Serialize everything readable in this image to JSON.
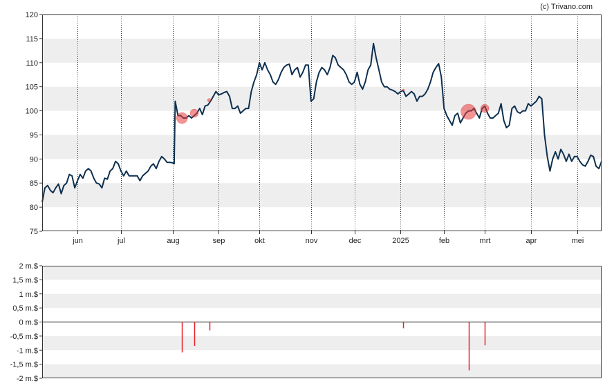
{
  "credit": "(c) Trivano.com",
  "chart_data": [
    {
      "type": "line",
      "y_ticks": [
        "120",
        "115",
        "110",
        "105",
        "100",
        "95",
        "90",
        "85",
        "80",
        "75"
      ],
      "ylim": [
        75,
        120
      ],
      "x_ticks": [
        {
          "label": "jun",
          "x": 13
        },
        {
          "label": "jul",
          "x": 29
        },
        {
          "label": "aug",
          "x": 48
        },
        {
          "label": "sep",
          "x": 65
        },
        {
          "label": "okt",
          "x": 80
        },
        {
          "label": "nov",
          "x": 99
        },
        {
          "label": "dec",
          "x": 115
        },
        {
          "label": "2025",
          "x": 132
        },
        {
          "label": "feb",
          "x": 148
        },
        {
          "label": "mrt",
          "x": 163
        },
        {
          "label": "apr",
          "x": 180
        },
        {
          "label": "mei",
          "x": 197
        }
      ],
      "xlim": [
        0,
        201
      ],
      "series": [
        {
          "values": [
            [
              0,
              81
            ],
            [
              1,
              84
            ],
            [
              2,
              84.5
            ],
            [
              3,
              83.5
            ],
            [
              4,
              83
            ],
            [
              5,
              84
            ],
            [
              6,
              84.8
            ],
            [
              7,
              82.8
            ],
            [
              8,
              84.5
            ],
            [
              9,
              85
            ],
            [
              10,
              86.8
            ],
            [
              11,
              86.5
            ],
            [
              12,
              84
            ],
            [
              13,
              85.5
            ],
            [
              14,
              86.8
            ],
            [
              15,
              86
            ],
            [
              16,
              87.5
            ],
            [
              17,
              88
            ],
            [
              18,
              87.5
            ],
            [
              19,
              86
            ],
            [
              20,
              85
            ],
            [
              21,
              84.8
            ],
            [
              22,
              84
            ],
            [
              23,
              86
            ],
            [
              24,
              85.8
            ],
            [
              25,
              87.5
            ],
            [
              26,
              88
            ],
            [
              27,
              89.5
            ],
            [
              28,
              89
            ],
            [
              29,
              87.5
            ],
            [
              30,
              86.5
            ],
            [
              31,
              87.5
            ],
            [
              32,
              86.5
            ],
            [
              33,
              86.5
            ],
            [
              34,
              86.5
            ],
            [
              35,
              86.5
            ],
            [
              36,
              85.5
            ],
            [
              37,
              86.5
            ],
            [
              38,
              87
            ],
            [
              39,
              87.5
            ],
            [
              40,
              88.5
            ],
            [
              41,
              89
            ],
            [
              42,
              88
            ],
            [
              43,
              89.5
            ],
            [
              44,
              90.5
            ],
            [
              45,
              90
            ],
            [
              46,
              89.3
            ],
            [
              47,
              89.3
            ],
            [
              48,
              89.2
            ],
            [
              48.6,
              89
            ],
            [
              49,
              102
            ],
            [
              50,
              99
            ],
            [
              51,
              99
            ],
            [
              52,
              98.5
            ],
            [
              53,
              98.5
            ],
            [
              54,
              99
            ],
            [
              55,
              98.5
            ],
            [
              56,
              99
            ],
            [
              57,
              99.5
            ],
            [
              58,
              100.5
            ],
            [
              59,
              99.2
            ],
            [
              60,
              101
            ],
            [
              61,
              101.2
            ],
            [
              62,
              102
            ],
            [
              63,
              103
            ],
            [
              64,
              104
            ],
            [
              65,
              103.3
            ],
            [
              66,
              103.5
            ],
            [
              67,
              103.8
            ],
            [
              68,
              104
            ],
            [
              69,
              103
            ],
            [
              70,
              100.5
            ],
            [
              71,
              100.5
            ],
            [
              72,
              101
            ],
            [
              73,
              99.5
            ],
            [
              74,
              100
            ],
            [
              75,
              100.5
            ],
            [
              76,
              100.5
            ],
            [
              77,
              104
            ],
            [
              78,
              106
            ],
            [
              79,
              107.5
            ],
            [
              80,
              110
            ],
            [
              81,
              108.5
            ],
            [
              82,
              110
            ],
            [
              83,
              108.5
            ],
            [
              84,
              107.5
            ],
            [
              85,
              106
            ],
            [
              86,
              105.5
            ],
            [
              87,
              106.5
            ],
            [
              88,
              108
            ],
            [
              89,
              109
            ],
            [
              90,
              109.5
            ],
            [
              91,
              109.7
            ],
            [
              92,
              107.5
            ],
            [
              93,
              108.5
            ],
            [
              94,
              109
            ],
            [
              95,
              107
            ],
            [
              96,
              108
            ],
            [
              97,
              109.5
            ],
            [
              98,
              109.5
            ],
            [
              99,
              102
            ],
            [
              100,
              102.5
            ],
            [
              101,
              106
            ],
            [
              102,
              108
            ],
            [
              103,
              109
            ],
            [
              104,
              108.5
            ],
            [
              105,
              107.5
            ],
            [
              106,
              109
            ],
            [
              107,
              111.5
            ],
            [
              108,
              111
            ],
            [
              109,
              109.5
            ],
            [
              110,
              109
            ],
            [
              111,
              108.5
            ],
            [
              112,
              107.5
            ],
            [
              113,
              106
            ],
            [
              114,
              105.5
            ],
            [
              115,
              106
            ],
            [
              116,
              108
            ],
            [
              117,
              105.5
            ],
            [
              118,
              104.5
            ],
            [
              119,
              106
            ],
            [
              120,
              108.5
            ],
            [
              121,
              109.5
            ],
            [
              122,
              114
            ],
            [
              123,
              111
            ],
            [
              124,
              108.5
            ],
            [
              125,
              106
            ],
            [
              126,
              105
            ],
            [
              127,
              105
            ],
            [
              128,
              104.5
            ],
            [
              129,
              104.3
            ],
            [
              130,
              104
            ],
            [
              131,
              103.5
            ],
            [
              132,
              104
            ],
            [
              133,
              104.2
            ],
            [
              134,
              103
            ],
            [
              135,
              103.5
            ],
            [
              136,
              104
            ],
            [
              137,
              103.5
            ],
            [
              138,
              102
            ],
            [
              139,
              103
            ],
            [
              140,
              103
            ],
            [
              141,
              103.5
            ],
            [
              142,
              104.5
            ],
            [
              143,
              106
            ],
            [
              144,
              108
            ],
            [
              145,
              109
            ],
            [
              146,
              109.8
            ],
            [
              147,
              107
            ],
            [
              148,
              100.5
            ],
            [
              149,
              99
            ],
            [
              150,
              98
            ],
            [
              151,
              97
            ],
            [
              152,
              99
            ],
            [
              153,
              99.5
            ],
            [
              154,
              97.5
            ],
            [
              155,
              98.5
            ],
            [
              156,
              99.5
            ],
            [
              157,
              100
            ],
            [
              158,
              100
            ],
            [
              159,
              100.5
            ],
            [
              160,
              99.5
            ],
            [
              161,
              98.5
            ],
            [
              162,
              100.5
            ],
            [
              163,
              101
            ],
            [
              164,
              99.5
            ],
            [
              165,
              98.5
            ],
            [
              166,
              98.5
            ],
            [
              167,
              99
            ],
            [
              168,
              99.5
            ],
            [
              169,
              101.5
            ],
            [
              170,
              98
            ],
            [
              171,
              96.5
            ],
            [
              172,
              97
            ],
            [
              173,
              100.5
            ],
            [
              174,
              101
            ],
            [
              175,
              99.8
            ],
            [
              176,
              99.5
            ],
            [
              177,
              100
            ],
            [
              178,
              100
            ],
            [
              179,
              101.5
            ],
            [
              180,
              101
            ],
            [
              181,
              101.5
            ],
            [
              182,
              102
            ],
            [
              183,
              103
            ],
            [
              184,
              102.5
            ],
            [
              185,
              95
            ],
            [
              186,
              90.5
            ],
            [
              187,
              87.5
            ],
            [
              188,
              90
            ],
            [
              189,
              91.5
            ],
            [
              190,
              90
            ],
            [
              191,
              92
            ],
            [
              192,
              91
            ],
            [
              193,
              89.5
            ],
            [
              194,
              91
            ],
            [
              195,
              89.5
            ],
            [
              196,
              90.5
            ],
            [
              197,
              90.5
            ],
            [
              198,
              89.5
            ],
            [
              199,
              88.8
            ],
            [
              200,
              88.5
            ],
            [
              201,
              89.5
            ],
            [
              202,
              90.8
            ],
            [
              203,
              90.5
            ],
            [
              204,
              88.5
            ],
            [
              205,
              88
            ],
            [
              206,
              89.5
            ]
          ]
        }
      ],
      "markers": [
        {
          "x": 51.5,
          "y": 98.5,
          "size": 8
        },
        {
          "x": 56,
          "y": 99.5,
          "size": 6
        },
        {
          "x": 61.5,
          "y": 102.2,
          "size": 2.5
        },
        {
          "x": 133,
          "y": 104.3,
          "size": 1.5
        },
        {
          "x": 157,
          "y": 99.8,
          "size": 11
        },
        {
          "x": 163,
          "y": 100.5,
          "size": 6
        }
      ]
    },
    {
      "type": "bar",
      "y_ticks": [
        "2 m.$",
        "1,5 m.$",
        "1 m.$",
        "0,5 m.$",
        "0 m.$",
        "-0,5 m.$",
        "-1 m.$",
        "-1,5 m.$",
        "-2 m.$"
      ],
      "ylim": [
        -2,
        2
      ],
      "unit": "m.$",
      "series": [
        {
          "values": [
            {
              "x": 51.5,
              "value": -1.08
            },
            {
              "x": 56,
              "value": -0.85
            },
            {
              "x": 61.5,
              "value": -0.3
            },
            {
              "x": 133,
              "value": -0.22
            },
            {
              "x": 157,
              "value": -1.72
            },
            {
              "x": 163,
              "value": -0.83
            }
          ]
        }
      ]
    }
  ]
}
